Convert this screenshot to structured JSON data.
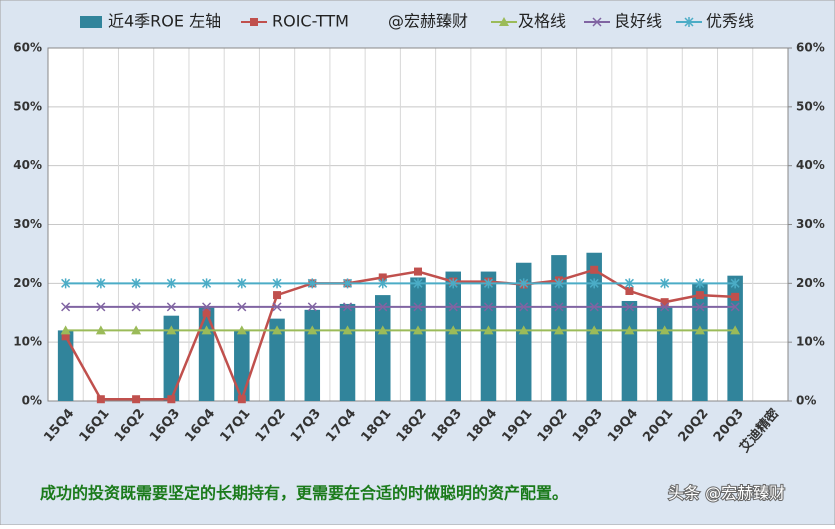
{
  "chart_data": {
    "type": "combo",
    "categories": [
      "15Q4",
      "16Q1",
      "16Q2",
      "16Q3",
      "16Q4",
      "17Q1",
      "17Q2",
      "17Q3",
      "17Q4",
      "18Q1",
      "18Q2",
      "18Q3",
      "18Q4",
      "19Q1",
      "19Q2",
      "19Q3",
      "19Q4",
      "20Q1",
      "20Q2",
      "20Q3",
      "艾迪精密"
    ],
    "series": [
      {
        "name": "近4季ROE 左轴",
        "type": "bar",
        "color": "#31849b",
        "values": [
          12,
          null,
          null,
          14.5,
          16,
          12,
          14,
          15.5,
          16.5,
          18,
          21,
          22,
          22,
          23.5,
          24.8,
          25.2,
          17,
          16,
          20,
          21.3,
          null
        ]
      },
      {
        "name": "ROIC-TTM",
        "type": "line",
        "marker": "square",
        "color": "#c0504d",
        "values": [
          11,
          0.3,
          0.3,
          0.3,
          15,
          0.3,
          18,
          20,
          20,
          21,
          22,
          20.3,
          20.3,
          19.8,
          20.5,
          22.3,
          18.7,
          16.8,
          18,
          17.7,
          null
        ]
      },
      {
        "name": "及格线",
        "type": "line",
        "marker": "triangle",
        "color": "#9bbb59",
        "values": [
          12,
          12,
          12,
          12,
          12,
          12,
          12,
          12,
          12,
          12,
          12,
          12,
          12,
          12,
          12,
          12,
          12,
          12,
          12,
          12,
          null
        ]
      },
      {
        "name": "良好线",
        "type": "line",
        "marker": "x",
        "color": "#8064a2",
        "values": [
          16,
          16,
          16,
          16,
          16,
          16,
          16,
          16,
          16,
          16,
          16,
          16,
          16,
          16,
          16,
          16,
          16,
          16,
          16,
          16,
          null
        ]
      },
      {
        "name": "优秀线",
        "type": "line",
        "marker": "star",
        "color": "#4bacc6",
        "values": [
          20,
          20,
          20,
          20,
          20,
          20,
          20,
          20,
          20,
          20,
          20,
          20,
          20,
          20,
          20,
          20,
          20,
          20,
          20,
          20,
          null
        ]
      }
    ],
    "legend_annotation": "@宏赫臻财",
    "ylim": [
      0,
      60
    ],
    "yticks": [
      {
        "value": 0,
        "label": "0%"
      },
      {
        "value": 10,
        "label": "10%"
      },
      {
        "value": 20,
        "label": "20%"
      },
      {
        "value": 30,
        "label": "30%"
      },
      {
        "value": 40,
        "label": "40%"
      },
      {
        "value": 50,
        "label": "50%"
      },
      {
        "value": 60,
        "label": "60%"
      }
    ],
    "y2lim": [
      0,
      60
    ],
    "y2ticks": [
      {
        "value": 0,
        "label": "0%"
      },
      {
        "value": 10,
        "label": "10%"
      },
      {
        "value": 20,
        "label": "20%"
      },
      {
        "value": 30,
        "label": "30%"
      },
      {
        "value": 40,
        "label": "40%"
      },
      {
        "value": 50,
        "label": "50%"
      },
      {
        "value": 60,
        "label": "60%"
      }
    ],
    "grid": true,
    "legend": "top",
    "footer": "成功的投资既需要坚定的长期持有，更需要在合适的时做聪明的资产配置。",
    "watermark": "头条 @宏赫臻财"
  }
}
